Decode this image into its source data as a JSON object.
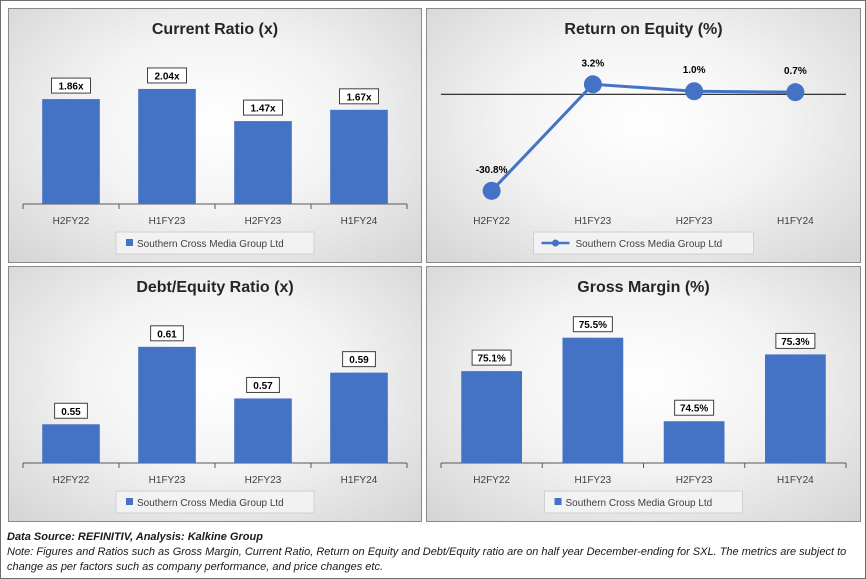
{
  "colors": {
    "bar": "#4472C4",
    "line": "#4472C4",
    "label_border": "#404040"
  },
  "chart_data": [
    {
      "type": "bar",
      "title": "Current Ratio (x)",
      "categories": [
        "H2FY22",
        "H1FY23",
        "H2FY23",
        "H1FY24"
      ],
      "series": [
        {
          "name": "Southern Cross Media Group Ltd",
          "values": [
            1.86,
            2.04,
            1.47,
            1.67
          ]
        }
      ],
      "data_labels": [
        "1.86x",
        "2.04x",
        "1.47x",
        "1.67x"
      ],
      "ylim": [
        0,
        2.5
      ],
      "legend": "bottom"
    },
    {
      "type": "line",
      "title": "Return on Equity (%)",
      "categories": [
        "H2FY22",
        "H1FY23",
        "H2FY23",
        "H1FY24"
      ],
      "series": [
        {
          "name": "Southern Cross Media Group Ltd",
          "values": [
            -30.8,
            3.2,
            1.0,
            0.7
          ]
        }
      ],
      "data_labels": [
        "-30.8%",
        "3.2%",
        "1.0%",
        "0.7%"
      ],
      "ylim": [
        -35,
        10
      ],
      "legend": "bottom"
    },
    {
      "type": "bar",
      "title": "Debt/Equity Ratio (x)",
      "categories": [
        "H2FY22",
        "H1FY23",
        "H2FY23",
        "H1FY24"
      ],
      "series": [
        {
          "name": "Southern Cross Media Group Ltd",
          "values": [
            0.55,
            0.61,
            0.57,
            0.59
          ]
        }
      ],
      "data_labels": [
        "0.55",
        "0.61",
        "0.57",
        "0.59"
      ],
      "ylim": [
        0.52,
        0.63
      ],
      "legend": "bottom"
    },
    {
      "type": "bar",
      "title": "Gross Margin (%)",
      "categories": [
        "H2FY22",
        "H1FY23",
        "H2FY23",
        "H1FY24"
      ],
      "series": [
        {
          "name": "Southern Cross Media Group Ltd",
          "values": [
            75.1,
            75.5,
            74.5,
            75.3
          ]
        }
      ],
      "data_labels": [
        "75.1%",
        "75.5%",
        "74.5%",
        "75.3%"
      ],
      "ylim": [
        74.0,
        75.7
      ],
      "legend": "bottom"
    }
  ],
  "footer": {
    "source": "Data Source: REFINITIV, Analysis: Kalkine Group",
    "note": "Note: Figures and Ratios such as Gross Margin, Current Ratio, Return on Equity and Debt/Equity ratio are on half year December-ending for SXL. The metrics are subject to change as per factors such as company performance, and price changes etc."
  }
}
